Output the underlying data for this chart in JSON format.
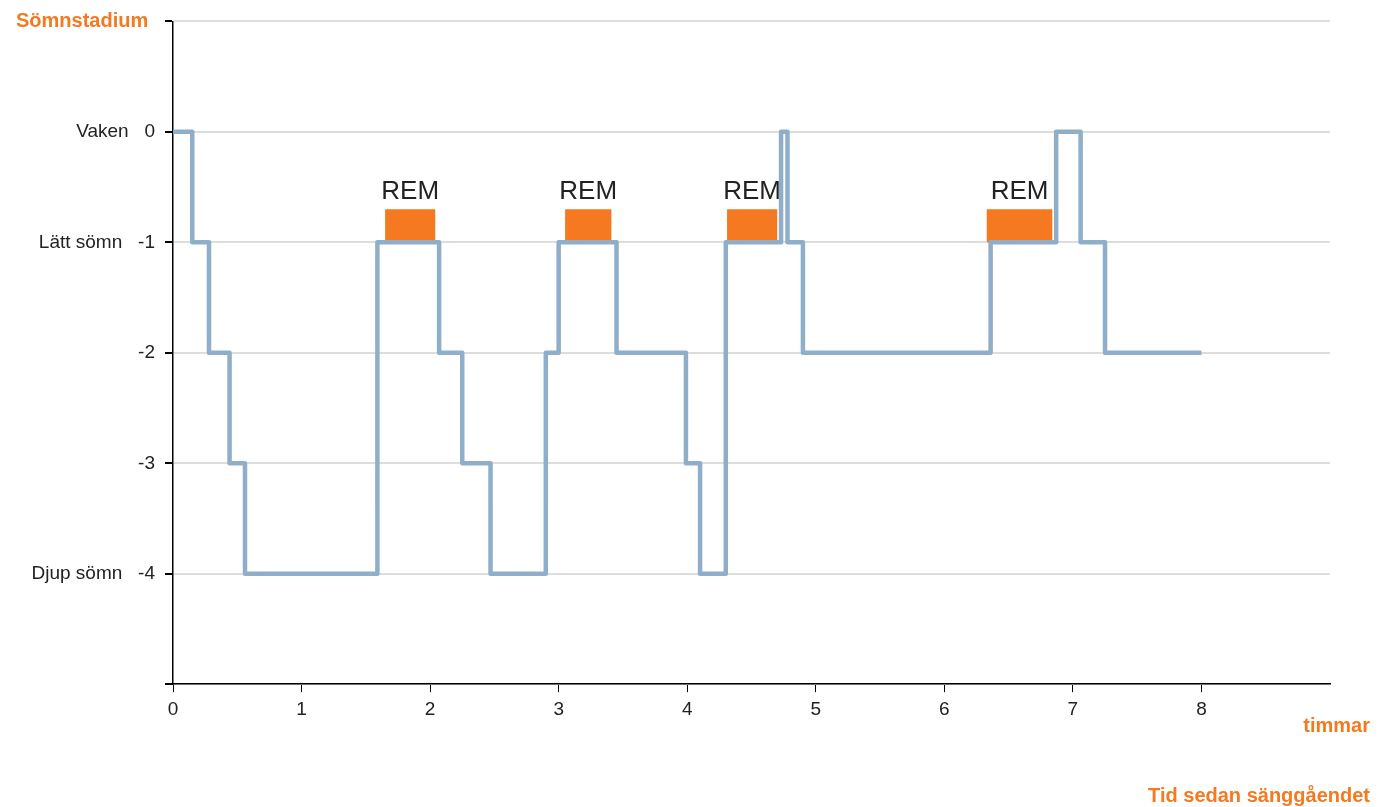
{
  "chart_data": {
    "type": "step",
    "ylabel": "Sömnstadium",
    "xlabel": "timmar",
    "annotations": [
      "Tid sedan sänggåendet"
    ],
    "x": [
      0,
      0.15,
      0.28,
      0.44,
      0.56,
      1.59,
      2.07,
      2.25,
      2.47,
      2.9,
      3.0,
      3.45,
      3.99,
      4.1,
      4.3,
      4.73,
      4.78,
      4.9,
      6.36,
      6.87,
      7.06,
      7.25,
      8
    ],
    "series": [
      {
        "color": "#8eaec9",
        "values": [
          0,
          -1,
          -2,
          -3,
          -4,
          -1,
          -2,
          -3,
          -4,
          -2,
          -1,
          -2,
          -3,
          -4,
          -1,
          0,
          -1,
          -2,
          -1,
          0,
          -1,
          -2,
          -2
        ]
      }
    ],
    "bands": [
      {
        "axis": "x",
        "from": 1.65,
        "to": 2.04,
        "label": "REM",
        "color": "#f47920"
      },
      {
        "axis": "x",
        "from": 3.05,
        "to": 3.41,
        "label": "REM",
        "color": "#f47920"
      },
      {
        "axis": "x",
        "from": 4.31,
        "to": 4.7,
        "label": "REM",
        "color": "#f47920"
      },
      {
        "axis": "x",
        "from": 6.33,
        "to": 6.84,
        "label": "REM",
        "color": "#f47920"
      }
    ],
    "xlim": [
      0,
      9
    ],
    "xticks": [
      0,
      1,
      2,
      3,
      4,
      5,
      6,
      7,
      8
    ],
    "ylim": [
      -5,
      1
    ],
    "yticks": [
      {
        "value": 1,
        "label": null
      },
      {
        "value": 0,
        "label": "Vaken   0"
      },
      {
        "value": -1,
        "label": "Lätt sömn   -1"
      },
      -2,
      -3,
      {
        "value": -4,
        "label": "Djup sömn   -4"
      },
      {
        "value": -5,
        "label": null
      }
    ],
    "grid": "y",
    "legend": false,
    "marker": "none",
    "line_style": "solid"
  }
}
